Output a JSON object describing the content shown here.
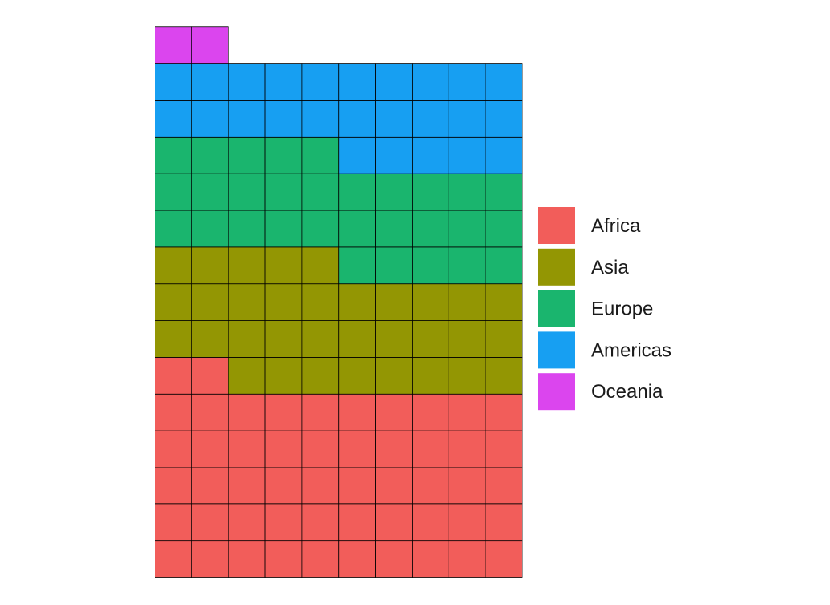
{
  "chart_data": {
    "type": "waffle",
    "title": "",
    "xlabel": "",
    "ylabel": "",
    "grid_columns": 10,
    "fill_order": "bottom-to-top, left-to-right",
    "legend_position": "right",
    "series": [
      {
        "name": "Africa",
        "value": 52,
        "color": "#F25D5A"
      },
      {
        "name": "Asia",
        "value": 33,
        "color": "#939603"
      },
      {
        "name": "Europe",
        "value": 30,
        "color": "#1AB56E"
      },
      {
        "name": "Americas",
        "value": 25,
        "color": "#179FF2"
      },
      {
        "name": "Oceania",
        "value": 2,
        "color": "#DB45EE"
      }
    ]
  }
}
